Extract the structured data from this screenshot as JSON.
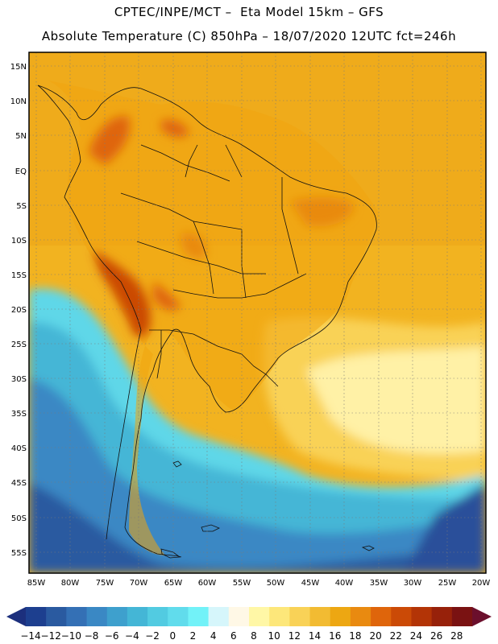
{
  "header": {
    "line1": "CPTEC/INPE/MCT –  Eta Model 15km – GFS",
    "line2": "Absolute Temperature (C) 850hPa – 18/07/2020 12UTC fct=246h"
  },
  "map": {
    "variable": "Absolute Temperature (C) 850hPa",
    "lon_range": [
      -86,
      -19
    ],
    "lat_range": [
      -58,
      17
    ],
    "lat_ticks": [
      "15N",
      "10N",
      "5N",
      "EQ",
      "5S",
      "10S",
      "15S",
      "20S",
      "25S",
      "30S",
      "35S",
      "40S",
      "45S",
      "50S",
      "55S"
    ],
    "lon_ticks": [
      "85W",
      "80W",
      "75W",
      "70W",
      "65W",
      "60W",
      "55W",
      "50W",
      "45W",
      "40W",
      "35W",
      "30W",
      "25W",
      "20W"
    ],
    "gridlines": "dotted",
    "colors": {
      "ocean_warm": "#f2b320",
      "land_warm": "#f0a40f",
      "hot": "#d9630a",
      "cool_pale": "#fff1a6",
      "cold": "#36c3d8",
      "coldest": "#2f6fb0"
    }
  },
  "colorbar": {
    "labels": [
      "-14",
      "-12",
      "-10",
      "-8",
      "-6",
      "-4",
      "-2",
      "0",
      "2",
      "4",
      "6",
      "8",
      "10",
      "12",
      "14",
      "16",
      "18",
      "20",
      "22",
      "24",
      "26",
      "28"
    ],
    "colors": [
      "#1d3f8f",
      "#2a5aa0",
      "#3470b5",
      "#3a88c4",
      "#3ea0cd",
      "#44b6d6",
      "#52cbe1",
      "#61dcec",
      "#72f2f8",
      "#d6f6fb",
      "#fff8e6",
      "#fff7a6",
      "#fde77a",
      "#f9d257",
      "#f2bb32",
      "#eda712",
      "#e98a10",
      "#df650b",
      "#cb4a06",
      "#b33406",
      "#97210a",
      "#7a1212"
    ],
    "low_arrow": "#1c2f7d",
    "high_arrow": "#6b0f2c"
  }
}
